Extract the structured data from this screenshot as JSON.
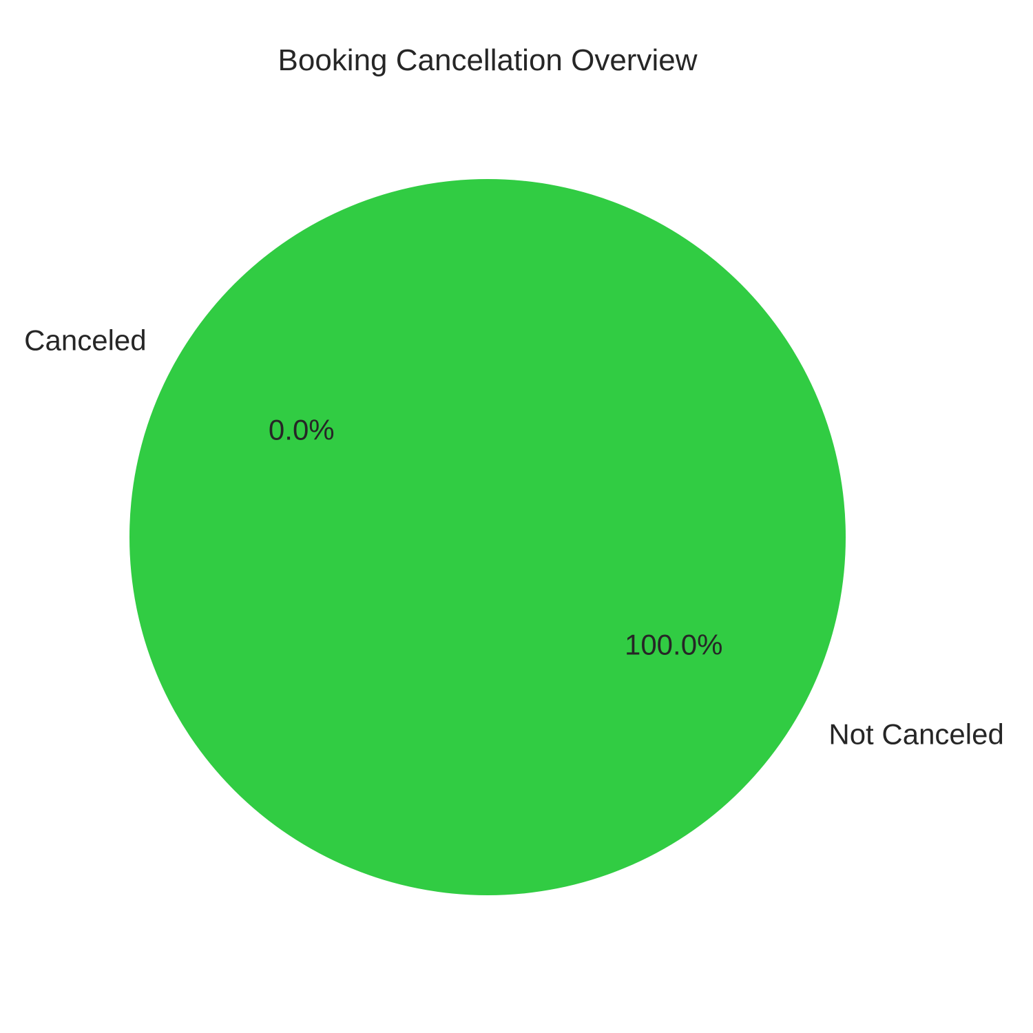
{
  "chart_data": {
    "type": "pie",
    "title": "Booking Cancellation Overview",
    "labels": [
      "Canceled",
      "Not Canceled"
    ],
    "values": [
      0.0,
      100.0
    ],
    "percent_labels": [
      "0.0%",
      "100.0%"
    ],
    "colors": [
      "#ff4d4d",
      "#31cc43"
    ],
    "start_angle_deg": 150,
    "direction": "counterclockwise"
  }
}
